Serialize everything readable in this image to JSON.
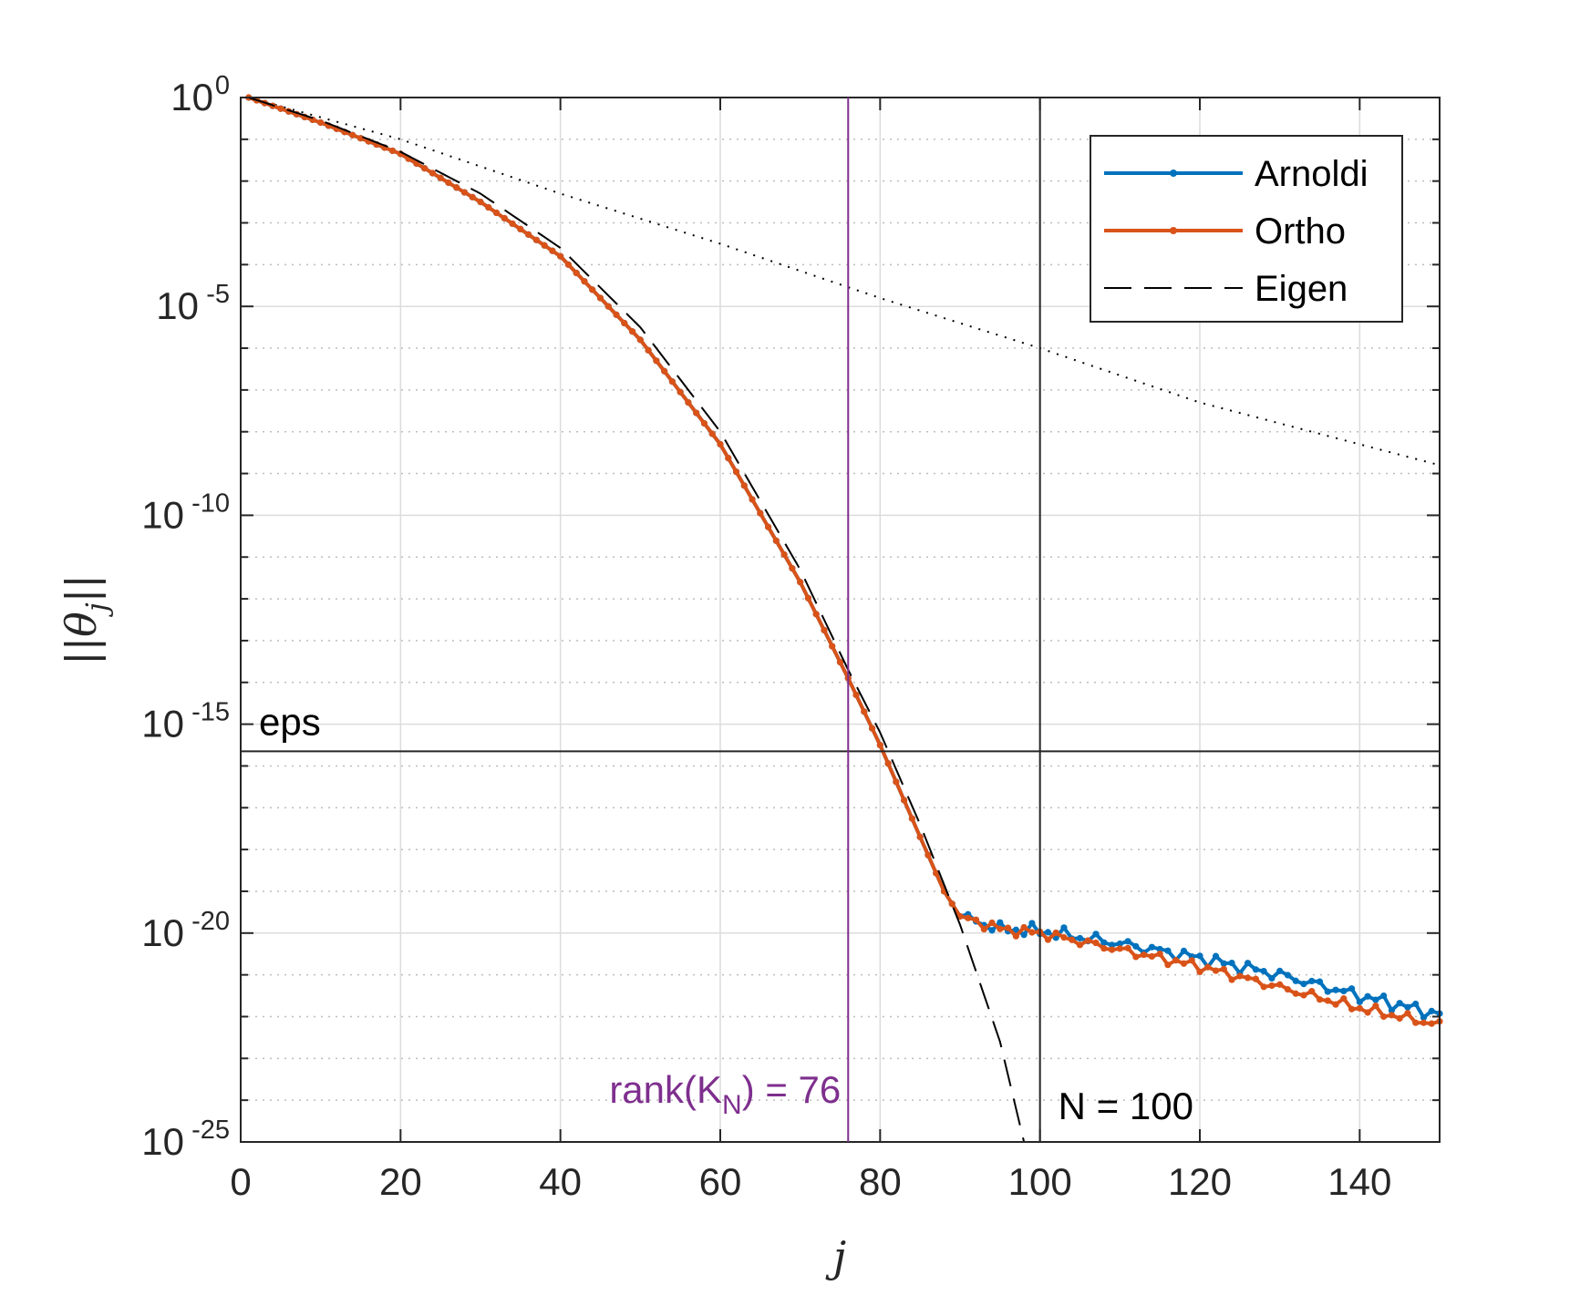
{
  "chart_data": {
    "type": "line",
    "title": "",
    "xlabel": "j",
    "ylabel": "||θ_j||",
    "ylabel_parts": {
      "open": "||",
      "symbol": "θ",
      "sub": "j",
      "close": "||"
    },
    "xlim": [
      0,
      150
    ],
    "ylim_log10": [
      -25,
      0
    ],
    "y_scale": "log",
    "grid": true,
    "x_ticks": [
      0,
      20,
      40,
      60,
      80,
      100,
      120,
      140
    ],
    "x_tick_labels": [
      "0",
      "20",
      "40",
      "60",
      "80",
      "100",
      "120",
      "140"
    ],
    "y_ticks": [
      {
        "base": "10",
        "exp": "0",
        "value": 0
      },
      {
        "base": "10",
        "exp": "-5",
        "value": -5
      },
      {
        "base": "10",
        "exp": "-10",
        "value": -10
      },
      {
        "base": "10",
        "exp": "-15",
        "value": -15
      },
      {
        "base": "10",
        "exp": "-20",
        "value": -20
      },
      {
        "base": "10",
        "exp": "-25",
        "value": -25
      }
    ],
    "legend_position": "top-right",
    "series": [
      {
        "name": "Arnoldi",
        "color": "#0072BD",
        "style": "solid-dots",
        "x_start": 1,
        "x_end": 150,
        "log10_keypoints": [
          [
            1,
            0
          ],
          [
            10,
            -0.6
          ],
          [
            20,
            -1.35
          ],
          [
            30,
            -2.5
          ],
          [
            40,
            -3.8
          ],
          [
            50,
            -5.8
          ],
          [
            60,
            -8.3
          ],
          [
            70,
            -11.6
          ],
          [
            76,
            -13.9
          ],
          [
            80,
            -15.5
          ],
          [
            85,
            -17.7
          ],
          [
            88,
            -19.0
          ],
          [
            90,
            -19.6
          ],
          [
            95,
            -19.9
          ],
          [
            100,
            -19.95
          ],
          [
            110,
            -20.25
          ],
          [
            120,
            -20.6
          ],
          [
            130,
            -21.0
          ],
          [
            140,
            -21.5
          ],
          [
            150,
            -21.95
          ]
        ]
      },
      {
        "name": "Ortho",
        "color": "#D95319",
        "style": "solid-dots",
        "x_start": 1,
        "x_end": 150,
        "log10_keypoints": [
          [
            1,
            0
          ],
          [
            10,
            -0.6
          ],
          [
            20,
            -1.35
          ],
          [
            30,
            -2.5
          ],
          [
            40,
            -3.8
          ],
          [
            50,
            -5.8
          ],
          [
            60,
            -8.3
          ],
          [
            70,
            -11.6
          ],
          [
            76,
            -13.9
          ],
          [
            80,
            -15.5
          ],
          [
            85,
            -17.7
          ],
          [
            88,
            -19.0
          ],
          [
            90,
            -19.6
          ],
          [
            95,
            -19.9
          ],
          [
            100,
            -20.0
          ],
          [
            110,
            -20.4
          ],
          [
            120,
            -20.8
          ],
          [
            130,
            -21.3
          ],
          [
            140,
            -21.8
          ],
          [
            150,
            -22.2
          ]
        ]
      },
      {
        "name": "Eigen",
        "color": "#000000",
        "style": "dashed",
        "x_start": 1,
        "x_end": 98,
        "log10_keypoints": [
          [
            1,
            0
          ],
          [
            10,
            -0.55
          ],
          [
            20,
            -1.3
          ],
          [
            30,
            -2.3
          ],
          [
            40,
            -3.6
          ],
          [
            50,
            -5.5
          ],
          [
            60,
            -8.0
          ],
          [
            70,
            -11.3
          ],
          [
            76,
            -13.7
          ],
          [
            80,
            -15.2
          ],
          [
            85,
            -17.4
          ],
          [
            90,
            -19.8
          ],
          [
            95,
            -22.6
          ],
          [
            98,
            -25.0
          ]
        ]
      },
      {
        "name": "reference",
        "color": "#000000",
        "style": "dotted",
        "in_legend": false,
        "x_start": 1,
        "x_end": 150,
        "log10_keypoints": [
          [
            1,
            0
          ],
          [
            20,
            -1.0
          ],
          [
            40,
            -2.3
          ],
          [
            60,
            -3.5
          ],
          [
            80,
            -4.8
          ],
          [
            100,
            -6.0
          ],
          [
            120,
            -7.3
          ],
          [
            150,
            -8.8
          ]
        ]
      }
    ],
    "annotations": [
      {
        "type": "hline",
        "y_log10": -15.65,
        "label": "eps",
        "color": "#262626"
      },
      {
        "type": "vline",
        "x": 76,
        "label": "rank(K",
        "sub": "N",
        "suffix": ") = 76",
        "color": "#7E2F8E"
      },
      {
        "type": "vline",
        "x": 100,
        "label": "N = 100",
        "color": "#262626"
      }
    ]
  }
}
